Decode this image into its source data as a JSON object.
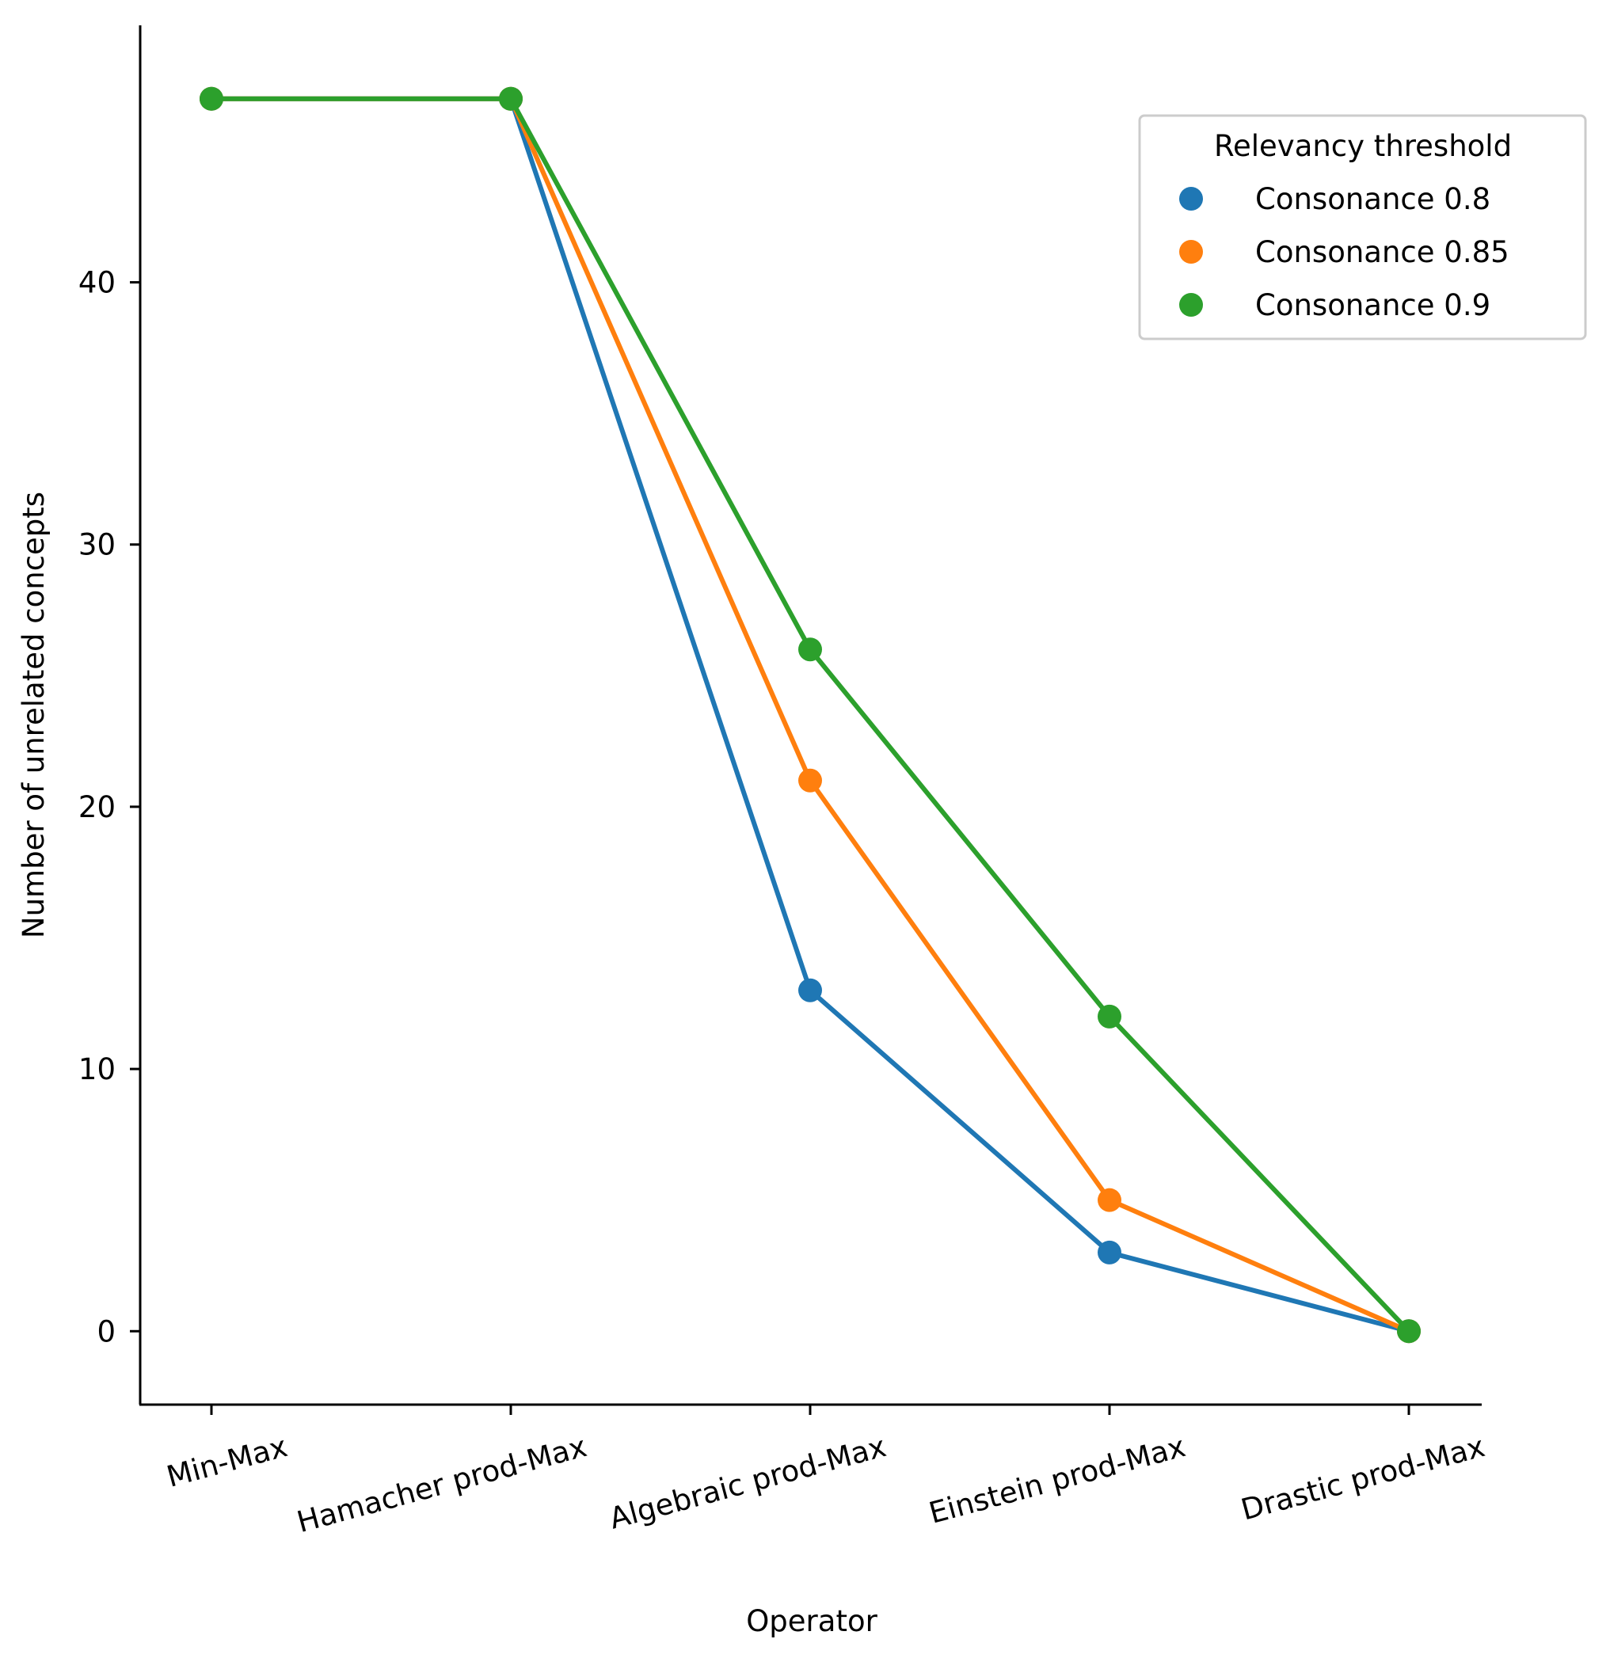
{
  "chart_data": {
    "type": "line",
    "categories": [
      "Min-Max",
      "Hamacher prod-Max",
      "Algebraic prod-Max",
      "Einstein prod-Max",
      "Drastic prod-Max"
    ],
    "xlabel": "Operator",
    "ylabel": "Number of unrelated concepts",
    "yticks": [
      0,
      10,
      20,
      30,
      40
    ],
    "ylim": [
      -2.8,
      49.8
    ],
    "grid": false,
    "legend": {
      "title": "Relevancy threshold",
      "position": "top-right"
    },
    "series": [
      {
        "name": "Consonance 0.8",
        "color": "#1f77b4",
        "values": [
          47,
          47,
          13,
          3,
          0
        ]
      },
      {
        "name": "Consonance 0.85",
        "color": "#ff7f0e",
        "values": [
          47,
          47,
          21,
          5,
          0
        ]
      },
      {
        "name": "Consonance 0.9",
        "color": "#2ca02c",
        "values": [
          47,
          47,
          26,
          12,
          0
        ]
      }
    ]
  }
}
